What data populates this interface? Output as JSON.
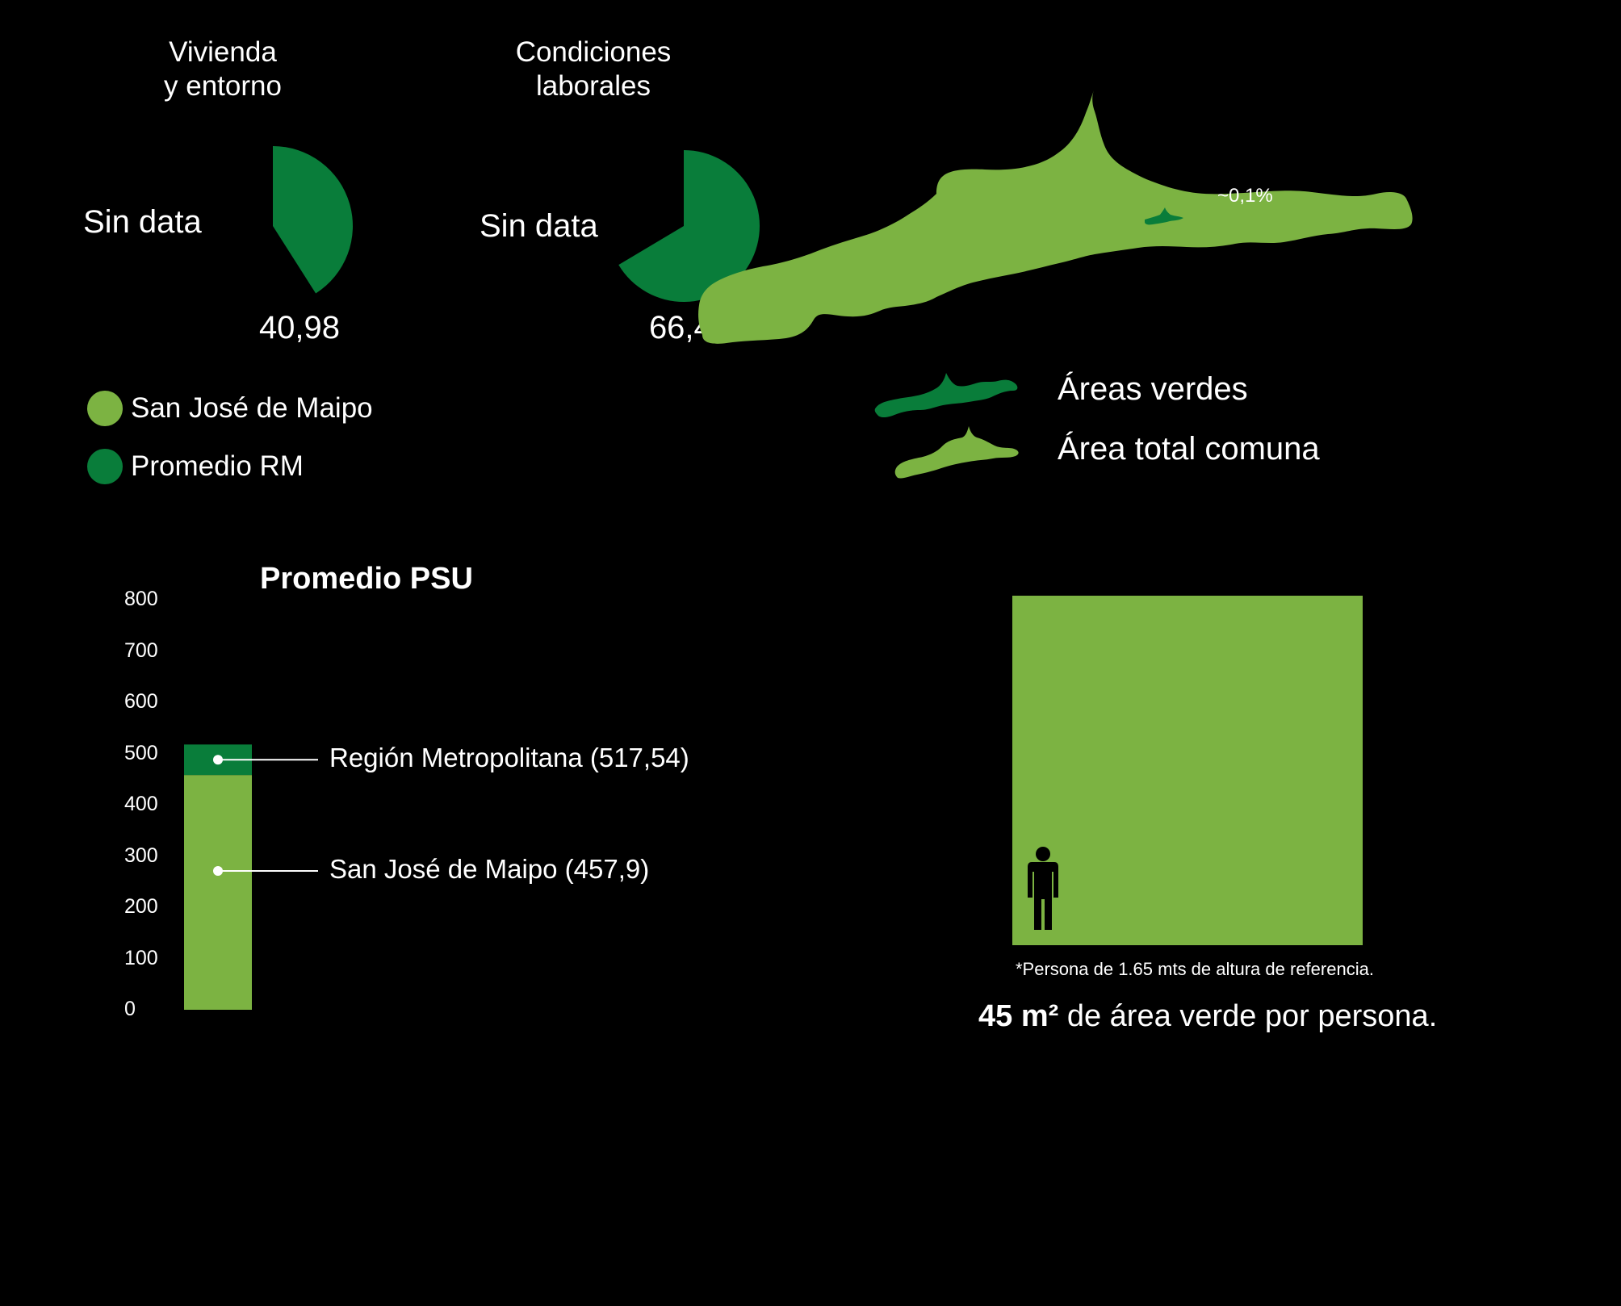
{
  "colors": {
    "background": "#000000",
    "san_jose": "#7cb342",
    "promedio_rm": "#097d3a",
    "text": "#ffffff"
  },
  "donuts": [
    {
      "title_line1": "Vivienda",
      "title_line2": "y entorno",
      "no_data": "Sin data",
      "value_label": "40,98"
    },
    {
      "title_line1": "Condiciones",
      "title_line2": "laborales",
      "no_data": "Sin data",
      "value_label": "66,44"
    }
  ],
  "legend": {
    "items": [
      {
        "label": "San José de Maipo",
        "color": "#7cb342"
      },
      {
        "label": "Promedio RM",
        "color": "#097d3a"
      }
    ]
  },
  "map": {
    "percent_label": "~0,1%",
    "legend": [
      {
        "label": "Áreas verdes",
        "color": "#097d3a"
      },
      {
        "label": "Área total comuna",
        "color": "#7cb342"
      }
    ]
  },
  "chart_data": [
    {
      "type": "pie",
      "title": "Vivienda y entorno",
      "series": [
        {
          "name": "San José de Maipo",
          "value": null,
          "label": "Sin data"
        },
        {
          "name": "Promedio RM",
          "value": 40.98
        }
      ],
      "max": 100
    },
    {
      "type": "pie",
      "title": "Condiciones laborales",
      "series": [
        {
          "name": "San José de Maipo",
          "value": null,
          "label": "Sin data"
        },
        {
          "name": "Promedio RM",
          "value": 66.44
        }
      ],
      "max": 100
    },
    {
      "type": "bar",
      "title": "Promedio PSU",
      "yticks": [
        "800",
        "700",
        "600",
        "500",
        "400",
        "300",
        "200",
        "100",
        "0"
      ],
      "ylim": [
        0,
        800
      ],
      "series": [
        {
          "name": "San José de Maipo",
          "value": 457.9,
          "label": "San José de Maipo (457,9)"
        },
        {
          "name": "Región Metropolitana",
          "value": 517.54,
          "label": "Región Metropolitana (517,54)"
        }
      ]
    }
  ],
  "green_area": {
    "footnote": "*Persona de 1.65 mts de altura de referencia.",
    "caption_bold": "45 m²",
    "caption_rest": " de área verde por persona."
  }
}
